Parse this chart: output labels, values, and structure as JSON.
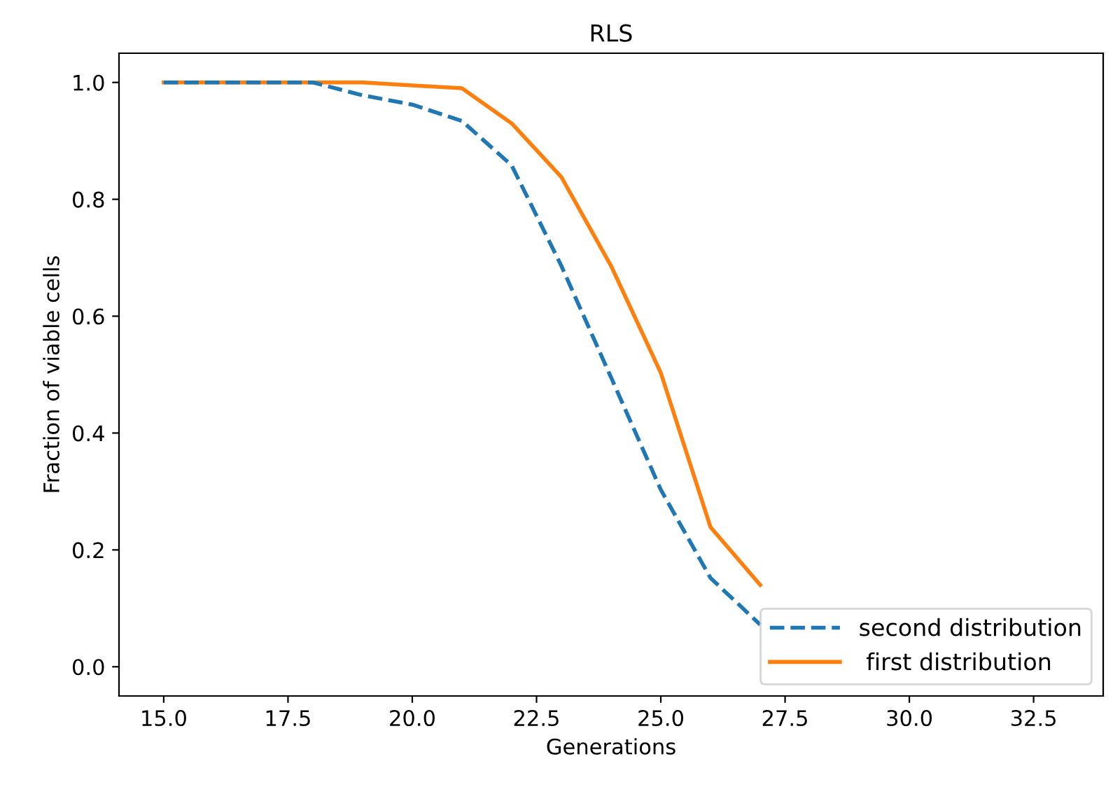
{
  "chart_data": {
    "type": "line",
    "title": "RLS",
    "xlabel": "Generations",
    "ylabel": "Fraction of viable cells",
    "x": [
      15,
      16,
      17,
      18,
      19,
      20,
      21,
      22,
      23,
      24,
      25,
      26,
      27
    ],
    "series": [
      {
        "name": "second distribution",
        "color": "#1f77b4",
        "line_style": "dashed",
        "values": [
          1.0,
          1.0,
          1.0,
          1.0,
          0.978,
          0.962,
          0.934,
          0.858,
          0.686,
          0.495,
          0.303,
          0.152,
          0.072
        ]
      },
      {
        "name": " first distribution",
        "color": "#ff7f0e",
        "line_style": "solid",
        "values": [
          1.0,
          1.0,
          1.0,
          1.0,
          1.0,
          0.995,
          0.99,
          0.93,
          0.838,
          0.686,
          0.503,
          0.239,
          0.14
        ]
      }
    ],
    "xlim": [
      14.1,
      33.9
    ],
    "ylim": [
      -0.05,
      1.05
    ],
    "xticks": [
      {
        "value": 15,
        "label": "15.0"
      },
      17.5,
      {
        "value": 20,
        "label": "20.0"
      },
      22.5,
      {
        "value": 25,
        "label": "25.0"
      },
      27.5,
      {
        "value": 30,
        "label": "30.0"
      },
      32.5
    ],
    "yticks": [
      {
        "value": 0,
        "label": "0.0"
      },
      0.2,
      0.4,
      0.6,
      0.8,
      {
        "value": 1,
        "label": "1.0"
      }
    ],
    "legend": "lower right",
    "grid": false,
    "marker": "none"
  }
}
